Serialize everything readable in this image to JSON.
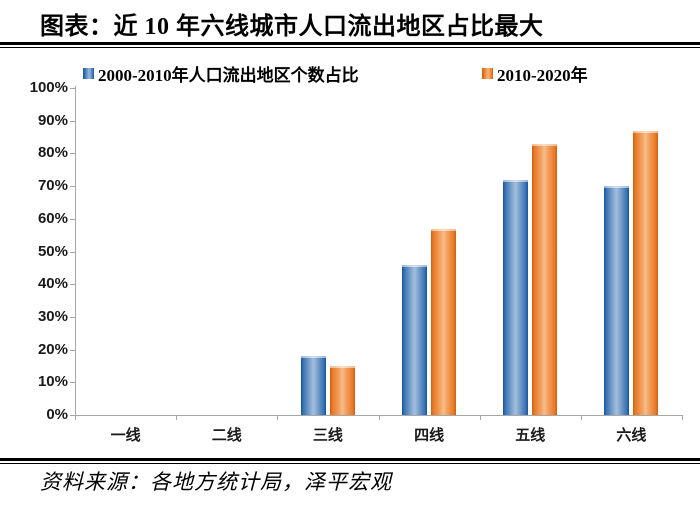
{
  "title": "图表：近 10 年六线城市人口流出地区占比最大",
  "source": "资料来源：各地方统计局，泽平宏观",
  "colors": {
    "series_blue": "#2e75b6",
    "series_orange": "#ed7d31",
    "axis": "#a6a6a6",
    "text": "#000000"
  },
  "chart_data": {
    "type": "bar",
    "categories": [
      "一线",
      "二线",
      "三线",
      "四线",
      "五线",
      "六线"
    ],
    "series": [
      {
        "name": "2000-2010年人口流出地区个数占比",
        "color": "#2e75b6",
        "values": [
          0,
          0,
          18,
          46,
          72,
          70
        ]
      },
      {
        "name": "2010-2020年",
        "color": "#ed7d31",
        "values": [
          0,
          0,
          15,
          57,
          83,
          87
        ]
      }
    ],
    "title": "近 10 年六线城市人口流出地区占比最大",
    "xlabel": "",
    "ylabel": "",
    "ylim": [
      0,
      100
    ],
    "ytick_step": 10,
    "ytick_labels": [
      "0%",
      "10%",
      "20%",
      "30%",
      "40%",
      "50%",
      "60%",
      "70%",
      "80%",
      "90%",
      "100%"
    ],
    "grid": false,
    "legend_position": "top"
  }
}
